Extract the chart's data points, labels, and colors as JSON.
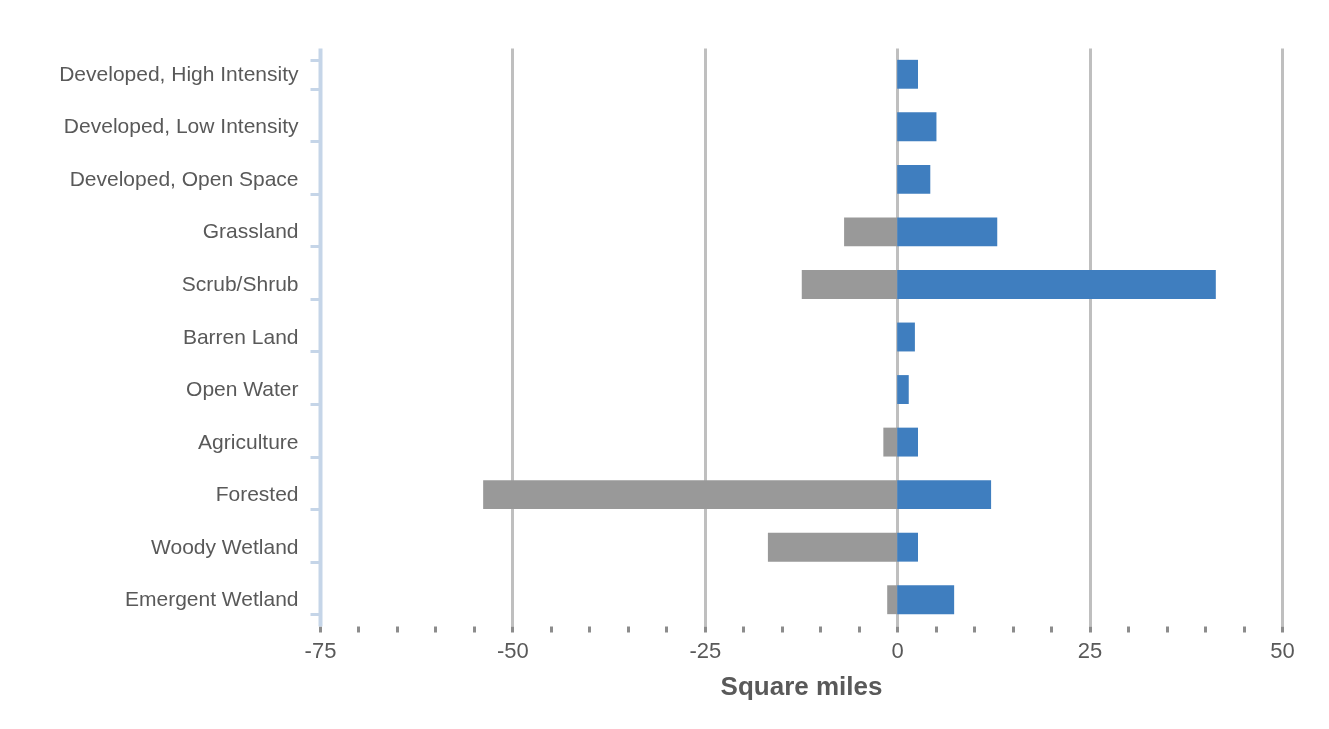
{
  "chart_data": {
    "type": "bar",
    "orientation": "horizontal",
    "xlabel": "Square miles",
    "categories": [
      "Developed, High Intensity",
      "Developed, Low Intensity",
      "Developed, Open Space",
      "Grassland",
      "Scrub/Shrub",
      "Barren Land",
      "Open Water",
      "Agriculture",
      "Forested",
      "Woody Wetland",
      "Emergent Wetland"
    ],
    "series": [
      {
        "color": "#999999",
        "values": [
          null,
          null,
          null,
          -6.9,
          -12.4,
          null,
          null,
          -1.8,
          -53.8,
          -16.8,
          -1.3
        ]
      },
      {
        "color": "#3f7ebf",
        "values": [
          2.7,
          5.1,
          4.3,
          13.0,
          41.4,
          2.3,
          1.5,
          2.7,
          12.2,
          2.7,
          7.4
        ]
      }
    ],
    "xlim": [
      -75,
      50
    ],
    "xticks": [
      -75,
      {
        "value": -70,
        "label": null
      },
      {
        "value": -65,
        "label": null
      },
      {
        "value": -60,
        "label": null
      },
      {
        "value": -55,
        "label": null
      },
      -50,
      {
        "value": -45,
        "label": null
      },
      {
        "value": -40,
        "label": null
      },
      {
        "value": -35,
        "label": null
      },
      {
        "value": -30,
        "label": null
      },
      -25,
      {
        "value": -20,
        "label": null
      },
      {
        "value": -15,
        "label": null
      },
      {
        "value": -10,
        "label": null
      },
      {
        "value": -5,
        "label": null
      },
      0,
      {
        "value": 5,
        "label": null
      },
      {
        "value": 10,
        "label": null
      },
      {
        "value": 15,
        "label": null
      },
      {
        "value": 20,
        "label": null
      },
      25,
      {
        "value": 30,
        "label": null
      },
      {
        "value": 35,
        "label": null
      },
      {
        "value": 40,
        "label": null
      },
      {
        "value": 45,
        "label": null
      },
      50
    ],
    "grid": "x",
    "stacked": true
  }
}
